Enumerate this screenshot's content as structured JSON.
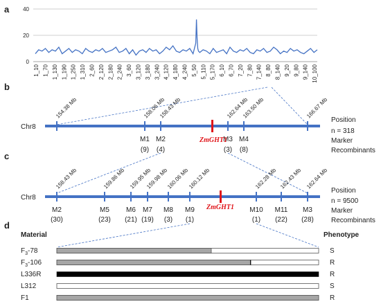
{
  "panels": {
    "a": "a",
    "b": "b",
    "c": "c",
    "d": "d"
  },
  "chart_data": {
    "type": "line",
    "yticks": [
      "0",
      "20",
      "40"
    ],
    "ylim": [
      0,
      40
    ],
    "xtick_labels": [
      "1_10",
      "1_70",
      "1_130",
      "1_190",
      "1_250",
      "1_310",
      "2_60",
      "2_120",
      "2_180",
      "2_240",
      "3_60",
      "3_120",
      "3_180",
      "3_240",
      "4_120",
      "4_180",
      "4_240",
      "5_50",
      "5_110",
      "5_170",
      "6_10",
      "6_70",
      "7_20",
      "7_80",
      "7_140",
      "8_80",
      "8_140",
      "9_20",
      "9_80",
      "9_140",
      "10_100"
    ],
    "x": [
      1,
      6,
      11,
      16,
      21,
      26,
      31,
      36,
      41,
      46,
      51,
      56,
      61,
      66,
      71,
      76,
      81,
      86,
      91,
      96,
      101,
      106,
      111,
      116,
      121,
      126,
      131,
      136,
      141,
      146,
      151,
      156,
      161,
      166,
      171,
      176,
      181,
      186,
      191,
      196,
      201,
      206,
      211,
      216,
      221,
      226,
      231,
      236,
      240,
      241,
      242,
      243,
      244,
      246,
      251,
      256,
      261,
      266,
      271,
      276,
      281,
      286,
      291,
      296,
      301,
      306,
      311,
      316,
      321,
      326,
      331,
      336,
      341,
      346,
      351,
      356,
      361,
      366,
      371,
      376,
      381,
      386,
      391,
      396,
      401,
      406,
      411,
      416,
      421
    ],
    "values": [
      6,
      9,
      8,
      10,
      7,
      9,
      8,
      11,
      6,
      8,
      10,
      7,
      9,
      8,
      6,
      10,
      8,
      7,
      9,
      8,
      10,
      7,
      8,
      9,
      11,
      7,
      8,
      10,
      6,
      9,
      5,
      8,
      9,
      7,
      10,
      8,
      9,
      6,
      8,
      11,
      9,
      12,
      8,
      7,
      9,
      8,
      10,
      6,
      14,
      32,
      18,
      10,
      8,
      7,
      9,
      8,
      6,
      10,
      7,
      8,
      9,
      6,
      11,
      8,
      7,
      9,
      8,
      10,
      7,
      6,
      9,
      8,
      10,
      7,
      8,
      11,
      9,
      6,
      8,
      7,
      10,
      8,
      9,
      7,
      6,
      8,
      10,
      7,
      9
    ]
  },
  "panel_b": {
    "chr": "Chr8",
    "positions": [
      "154.38 Mb",
      "158.06 Mb",
      "158.43 Mb",
      "162.64 Mb",
      "163.50 Mb",
      "166.67 Mb"
    ],
    "markers": [
      {
        "name": "M1",
        "rec": "(9)"
      },
      {
        "name": "M2",
        "rec": "(4)"
      },
      {
        "name": "M3",
        "rec": "(3)"
      },
      {
        "name": "M4",
        "rec": "(8)"
      }
    ],
    "gene": "ZmGHT1",
    "side": {
      "position": "Position",
      "n": "n = 318",
      "marker": "Marker",
      "recombinants": "Recombinants"
    }
  },
  "panel_c": {
    "chr": "Chr8",
    "positions": [
      "158.43 Mb",
      "159.86 Mb",
      "159.95 Mb",
      "159.98 Mb",
      "160.06 Mb",
      "160.12 Mb",
      "162.28 Mb",
      "162.43 Mb",
      "162.64 Mb"
    ],
    "markers": [
      {
        "name": "M2",
        "rec": "(30)"
      },
      {
        "name": "M5",
        "rec": "(23)"
      },
      {
        "name": "M6",
        "rec": "(21)"
      },
      {
        "name": "M7",
        "rec": "(19)"
      },
      {
        "name": "M8",
        "rec": "(3)"
      },
      {
        "name": "M9",
        "rec": "(1)"
      },
      {
        "name": "M10",
        "rec": "(1)"
      },
      {
        "name": "M11",
        "rec": "(22)"
      },
      {
        "name": "M3",
        "rec": "(28)"
      }
    ],
    "gene": "ZmGHT1",
    "side": {
      "position": "Position",
      "n": "n = 9500",
      "marker": "Marker",
      "recombinants": "Recombinants"
    }
  },
  "panel_d": {
    "header_material": "Material",
    "header_phenotype": "Phenotype",
    "rows": [
      {
        "material_base": "F",
        "material_sub": "3",
        "material_suffix": "-78",
        "phenotype": "S",
        "grey_fraction": 0.59,
        "fill": "mixed"
      },
      {
        "material_base": "F",
        "material_sub": "3",
        "material_suffix": "-106",
        "phenotype": "R",
        "grey_fraction": 0.74,
        "fill": "mixed"
      },
      {
        "material_base": "L336R",
        "material_sub": "",
        "material_suffix": "",
        "phenotype": "R",
        "grey_fraction": 1,
        "fill": "black"
      },
      {
        "material_base": "L312",
        "material_sub": "",
        "material_suffix": "",
        "phenotype": "S",
        "grey_fraction": 0,
        "fill": "white"
      },
      {
        "material_base": "F1",
        "material_sub": "",
        "material_suffix": "",
        "phenotype": "R",
        "grey_fraction": 1,
        "fill": "grey"
      }
    ]
  },
  "colors": {
    "line": "#4472c4",
    "chrom": "#4472c4",
    "gene": "#e0161b",
    "grey": "#a6a6a6",
    "black": "#000000"
  }
}
